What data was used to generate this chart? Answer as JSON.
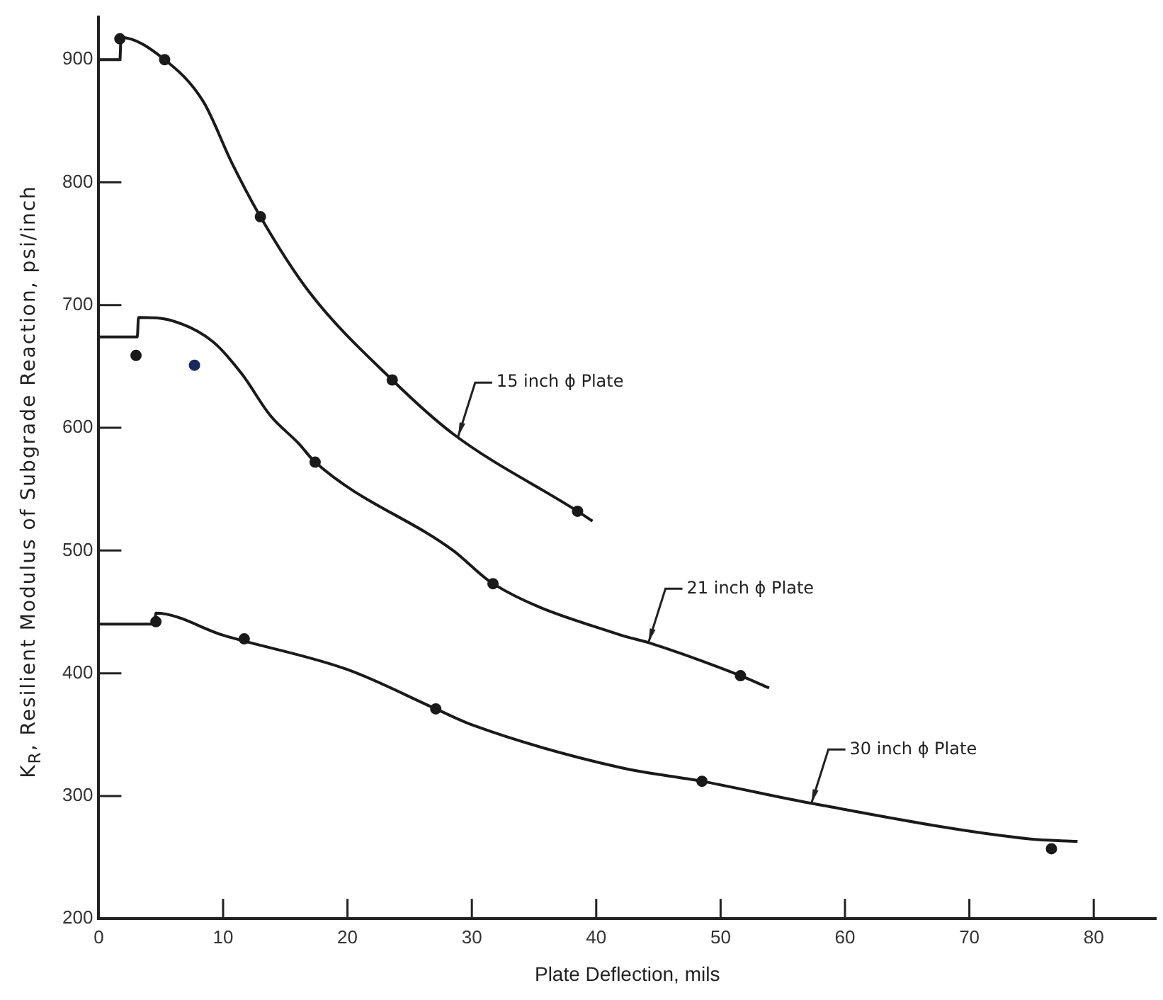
{
  "chart_data": {
    "type": "line",
    "xlabel": "Plate Deflection, mils",
    "ylabel": "K$_{R}$, Resilient Modulus of Subgrade Reaction, psi/inch",
    "xlim": [
      0,
      85
    ],
    "xticks": [
      0,
      10,
      20,
      30,
      40,
      50,
      60,
      70,
      80
    ],
    "ylim": [
      200,
      935
    ],
    "yticks": [
      200,
      300,
      400,
      500,
      600,
      700,
      800,
      900
    ],
    "grid": false,
    "legend": false,
    "line_style": "solid",
    "series": [
      {
        "type": "line",
        "marker": "none",
        "color": "#1a1a1a",
        "x": [
          0,
          1.7,
          1.8,
          5.3,
          8.4,
          10.7,
          13,
          16.9,
          23.6,
          28.5,
          38.5,
          39.7
        ],
        "values": [
          900,
          900,
          918,
          900,
          866,
          816,
          772,
          711,
          639,
          595,
          532,
          524
        ]
      },
      {
        "type": "line",
        "marker": "none",
        "color": "#1a1a1a",
        "x": [
          0,
          3.1,
          3.2,
          6,
          9.2,
          11.5,
          13.8,
          16.1,
          17.4,
          28.5,
          31.7,
          42,
          44.2,
          51.6,
          53.9
        ],
        "values": [
          674,
          674,
          690,
          687,
          670,
          644,
          610,
          587,
          572,
          500,
          473,
          431,
          425,
          398,
          388
        ]
      },
      {
        "type": "line",
        "marker": "none",
        "color": "#1a1a1a",
        "x": [
          0,
          4.5,
          4.6,
          10,
          20,
          27.1,
          30,
          42,
          48.5,
          57.3,
          74.8,
          78.7
        ],
        "values": [
          440,
          440,
          449,
          431,
          403,
          371,
          358,
          323,
          312,
          294,
          265,
          263
        ]
      },
      {
        "type": "scatter",
        "marker": "circle",
        "color": "#1a1a1a",
        "x": [
          1.7,
          5.3,
          13,
          23.6,
          38.5
        ],
        "values": [
          917,
          900,
          772,
          639,
          532
        ]
      },
      {
        "type": "scatter",
        "marker": "circle",
        "color": "#1a1a1a",
        "colors": [
          "#1a1a1a",
          "#1a2a5a",
          "#1a1a1a",
          "#1a1a1a",
          "#1a1a1a"
        ],
        "x": [
          3.0,
          7.7,
          17.4,
          31.7,
          51.6
        ],
        "values": [
          659,
          651,
          572,
          473,
          398
        ]
      },
      {
        "type": "scatter",
        "marker": "circle",
        "color": "#1a1a1a",
        "x": [
          4.6,
          11.7,
          27.1,
          48.5,
          76.6
        ],
        "values": [
          442,
          428,
          371,
          312,
          257
        ]
      }
    ],
    "annotations": [
      {
        "text": "15 inch ϕ Plate",
        "x": 28.9,
        "y": 593
      },
      {
        "text": "21 inch ϕ Plate",
        "x": 44.2,
        "y": 425
      },
      {
        "text": "30 inch ϕ Plate",
        "x": 57.3,
        "y": 294
      }
    ]
  }
}
